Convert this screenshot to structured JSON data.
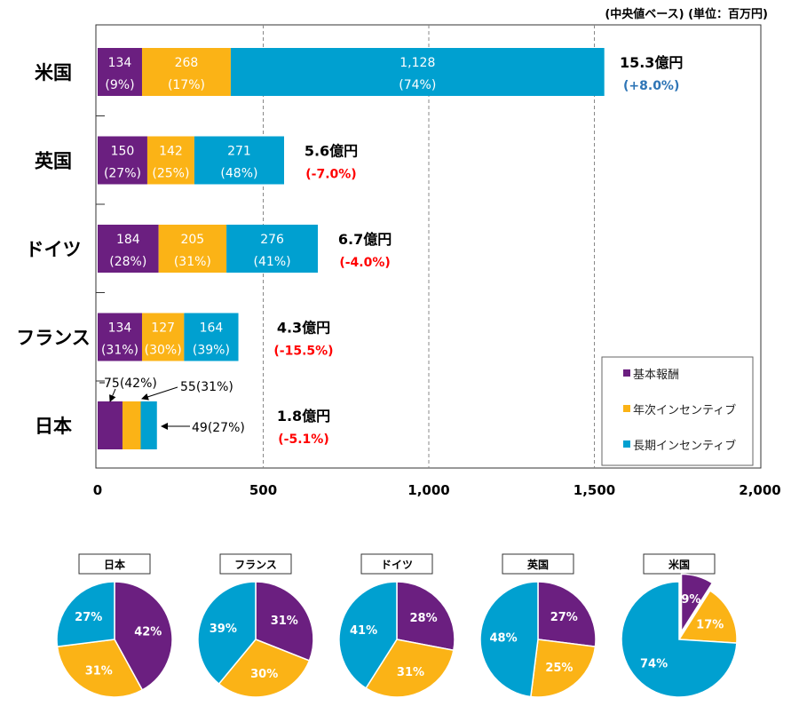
{
  "chart_data": [
    {
      "type": "bar",
      "stacked": true,
      "orientation": "horizontal",
      "note": "(中央値ベース) (単位：百万円)",
      "categories": [
        "米国",
        "英国",
        "ドイツ",
        "フランス",
        "日本"
      ],
      "series": [
        {
          "name": "基本報酬",
          "color": "#6b1f80",
          "values": [
            134,
            150,
            184,
            134,
            75
          ],
          "pct": [
            "9%",
            "27%",
            "28%",
            "31%",
            "42%"
          ]
        },
        {
          "name": "年次インセンティブ",
          "color": "#fbb316",
          "values": [
            268,
            142,
            205,
            127,
            55
          ],
          "pct": [
            "17%",
            "25%",
            "31%",
            "30%",
            "31%"
          ]
        },
        {
          "name": "長期インセンティブ",
          "color": "#00a0d0",
          "values": [
            1128,
            271,
            276,
            164,
            49
          ],
          "pct": [
            "74%",
            "48%",
            "41%",
            "39%",
            "27%"
          ]
        }
      ],
      "value_labels": [
        [
          "134",
          "268",
          "1,128"
        ],
        [
          "150",
          "142",
          "271"
        ],
        [
          "184",
          "205",
          "276"
        ],
        [
          "134",
          "127",
          "164"
        ],
        [
          "75",
          "55",
          "49"
        ]
      ],
      "totals": [
        "15.3億円",
        "5.6億円",
        "6.7億円",
        "4.3億円",
        "1.8億円"
      ],
      "changes": [
        "(+8.0%)",
        "(-7.0%)",
        "(-4.0%)",
        "(-15.5%)",
        "(-5.1%)"
      ],
      "change_colors": [
        "#2e75b6",
        "#ff0000",
        "#ff0000",
        "#ff0000",
        "#ff0000"
      ],
      "xlim": [
        0,
        2000
      ],
      "xticks": [
        "0",
        "500",
        "1,000",
        "1,500",
        "2,000"
      ],
      "xtick_values": [
        0,
        500,
        1000,
        1500,
        2000
      ],
      "grid": "vertical dashed",
      "legend": "bottom-right"
    },
    {
      "type": "pie",
      "pies": [
        {
          "title": "日本",
          "values": [
            42,
            31,
            27
          ],
          "labels": [
            "42%",
            "31%",
            "27%"
          ]
        },
        {
          "title": "フランス",
          "values": [
            31,
            30,
            39
          ],
          "labels": [
            "31%",
            "30%",
            "39%"
          ]
        },
        {
          "title": "ドイツ",
          "values": [
            28,
            31,
            41
          ],
          "labels": [
            "28%",
            "31%",
            "41%"
          ]
        },
        {
          "title": "英国",
          "values": [
            27,
            25,
            48
          ],
          "labels": [
            "27%",
            "25%",
            "48%"
          ]
        },
        {
          "title": "米国",
          "values": [
            9,
            17,
            74
          ],
          "labels": [
            "9%",
            "17%",
            "74%"
          ],
          "exploded": 0
        }
      ]
    }
  ]
}
